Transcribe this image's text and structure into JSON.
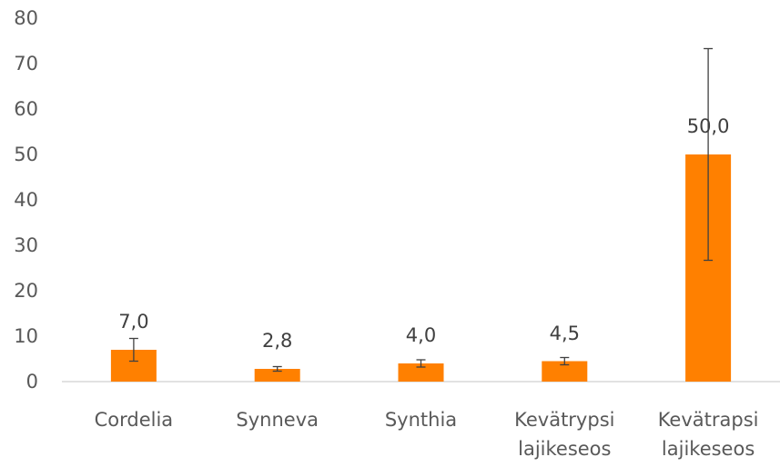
{
  "chart_data": {
    "type": "bar",
    "categories": [
      "Cordelia",
      "Synneva",
      "Synthia",
      "Kevätrypsi lajikeseos",
      "Kevätrapsi lajikeseos"
    ],
    "values": [
      7.0,
      2.8,
      4.0,
      4.5,
      50.0
    ],
    "value_labels": [
      "7,0",
      "2,8",
      "4,0",
      "4,5",
      "50,0"
    ],
    "errors": [
      2.5,
      0.5,
      0.8,
      0.8,
      23.3
    ],
    "color": "#ff8000",
    "ylim": [
      0,
      80
    ],
    "yticks": [
      0,
      10,
      20,
      30,
      40,
      50,
      60,
      70,
      80
    ],
    "grid": false
  }
}
